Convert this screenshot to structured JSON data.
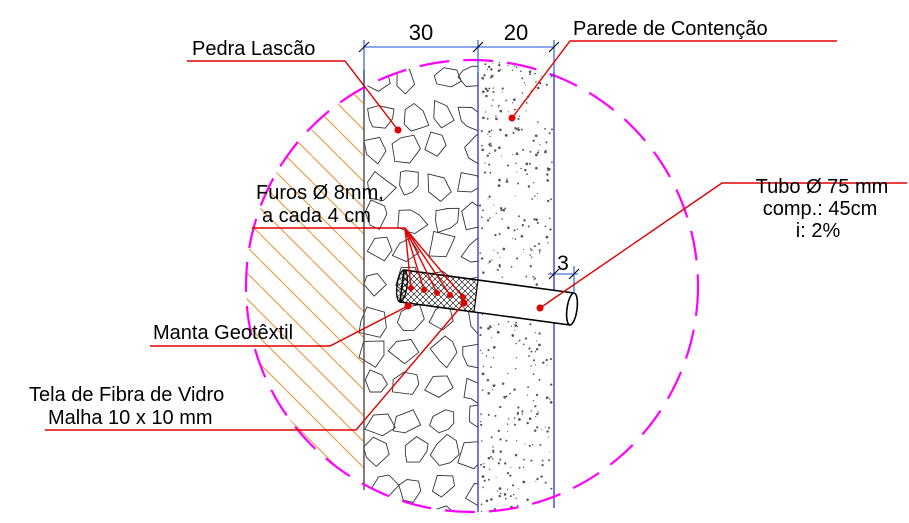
{
  "labels": {
    "pedra": "Pedra Lascão",
    "parede": "Parede de Contenção",
    "furos_line1": "Furos Ø 8mm,",
    "furos_line2": "a cada 4 cm",
    "tubo_line1": "Tubo Ø 75 mm",
    "tubo_line2": "comp.: 45cm",
    "tubo_line3": "i: 2%",
    "manta": "Manta Geotêxtil",
    "tela_line1": "Tela de Fibra de Vidro",
    "tela_line2": "Malha 10 x 10 mm"
  },
  "dimensions": {
    "pedra_width": "30",
    "parede_width": "20",
    "tube_projection": "3"
  },
  "colors": {
    "leader": "#e00000",
    "detail_circle": "#ff00ff",
    "dimension": "#1a4fd6",
    "soil_hatch": "#e8a050",
    "wall_edge": "#3030d0"
  }
}
